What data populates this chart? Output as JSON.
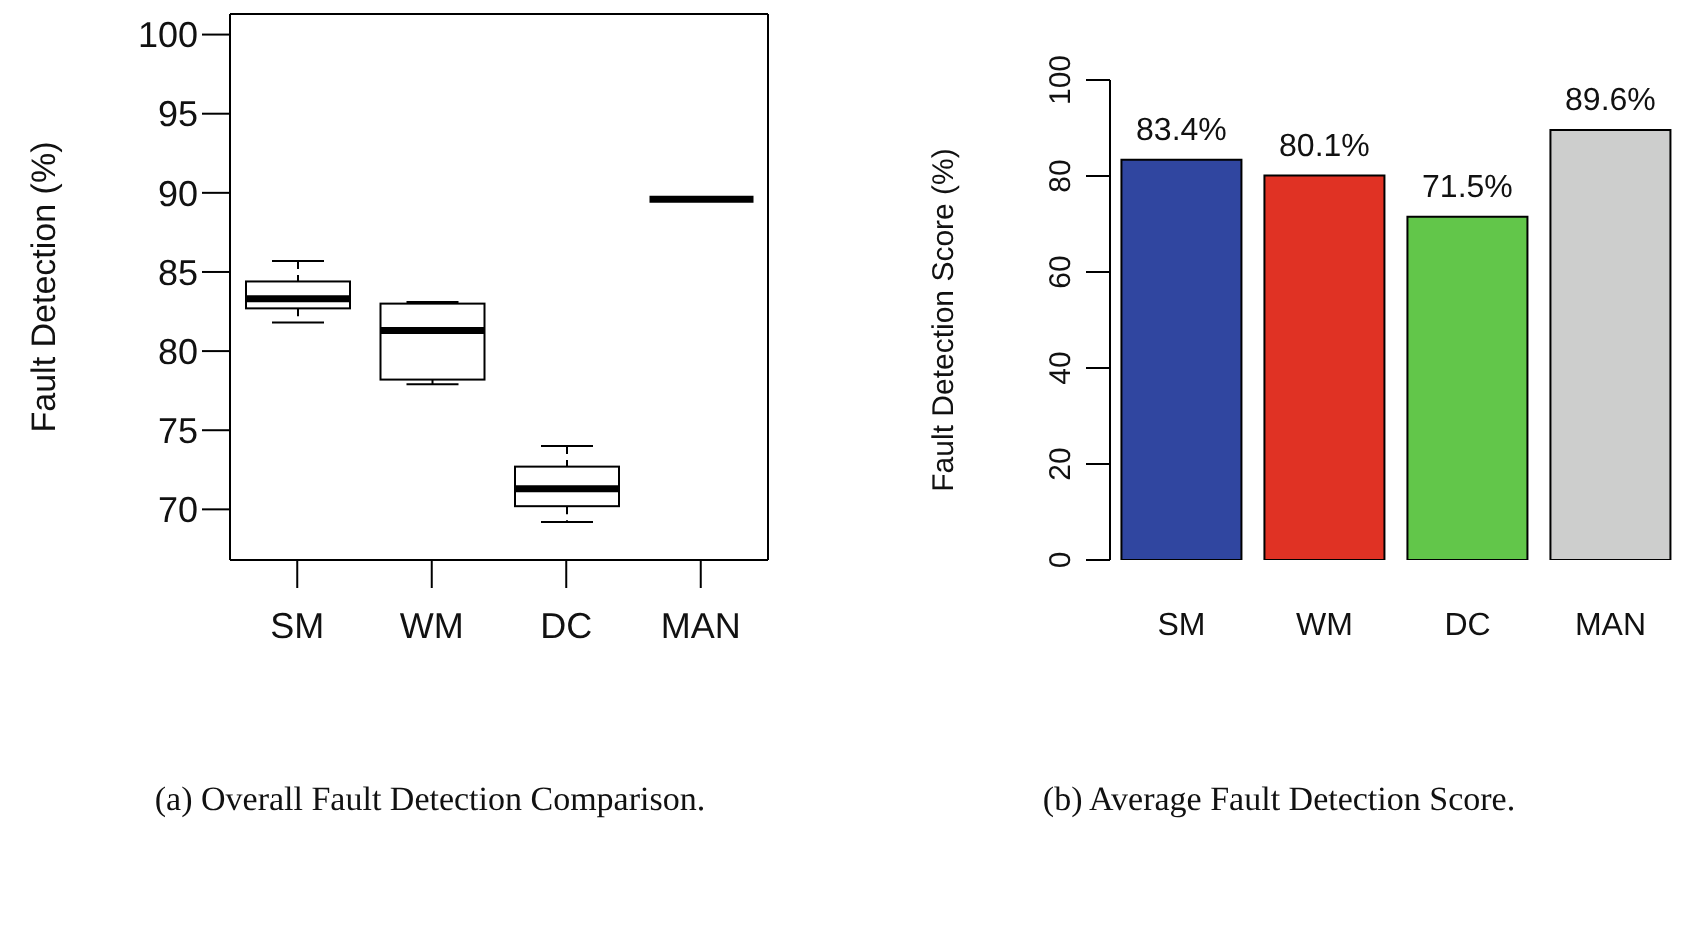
{
  "chart_data": [
    {
      "type": "box",
      "title": "(a) Overall Fault Detection Comparison.",
      "ylabel": "Fault Detection (%)",
      "categories": [
        "SM",
        "WM",
        "DC",
        "MAN"
      ],
      "boxes": [
        {
          "low": 81.8,
          "q1": 82.7,
          "median": 83.3,
          "q3": 84.4,
          "high": 85.7
        },
        {
          "low": 77.9,
          "q1": 78.2,
          "median": 81.3,
          "q3": 83.0,
          "high": 83.1
        },
        {
          "low": 69.2,
          "q1": 70.2,
          "median": 71.3,
          "q3": 72.7,
          "high": 74.0
        },
        {
          "low": 89.6,
          "q1": 89.6,
          "median": 89.6,
          "q3": 89.6,
          "high": 89.6
        }
      ],
      "ylim": [
        66.8,
        101.3
      ],
      "yticks": [
        70,
        75,
        80,
        85,
        90,
        95,
        100
      ],
      "grid": false
    },
    {
      "type": "bar",
      "title": "(b) Average Fault Detection Score.",
      "ylabel": "Fault Detection Score (%)",
      "categories": [
        "SM",
        "WM",
        "DC",
        "MAN"
      ],
      "values": [
        83.4,
        80.1,
        71.5,
        89.6
      ],
      "colors": [
        "#3046a0",
        "#e03224",
        "#62c64a",
        "#cdcecd"
      ],
      "value_labels": [
        "83.4%",
        "80.1%",
        "71.5%",
        "89.6%"
      ],
      "ylim": [
        0,
        100
      ],
      "yticks": [
        0,
        20,
        40,
        60,
        80,
        100
      ],
      "grid": false
    }
  ]
}
